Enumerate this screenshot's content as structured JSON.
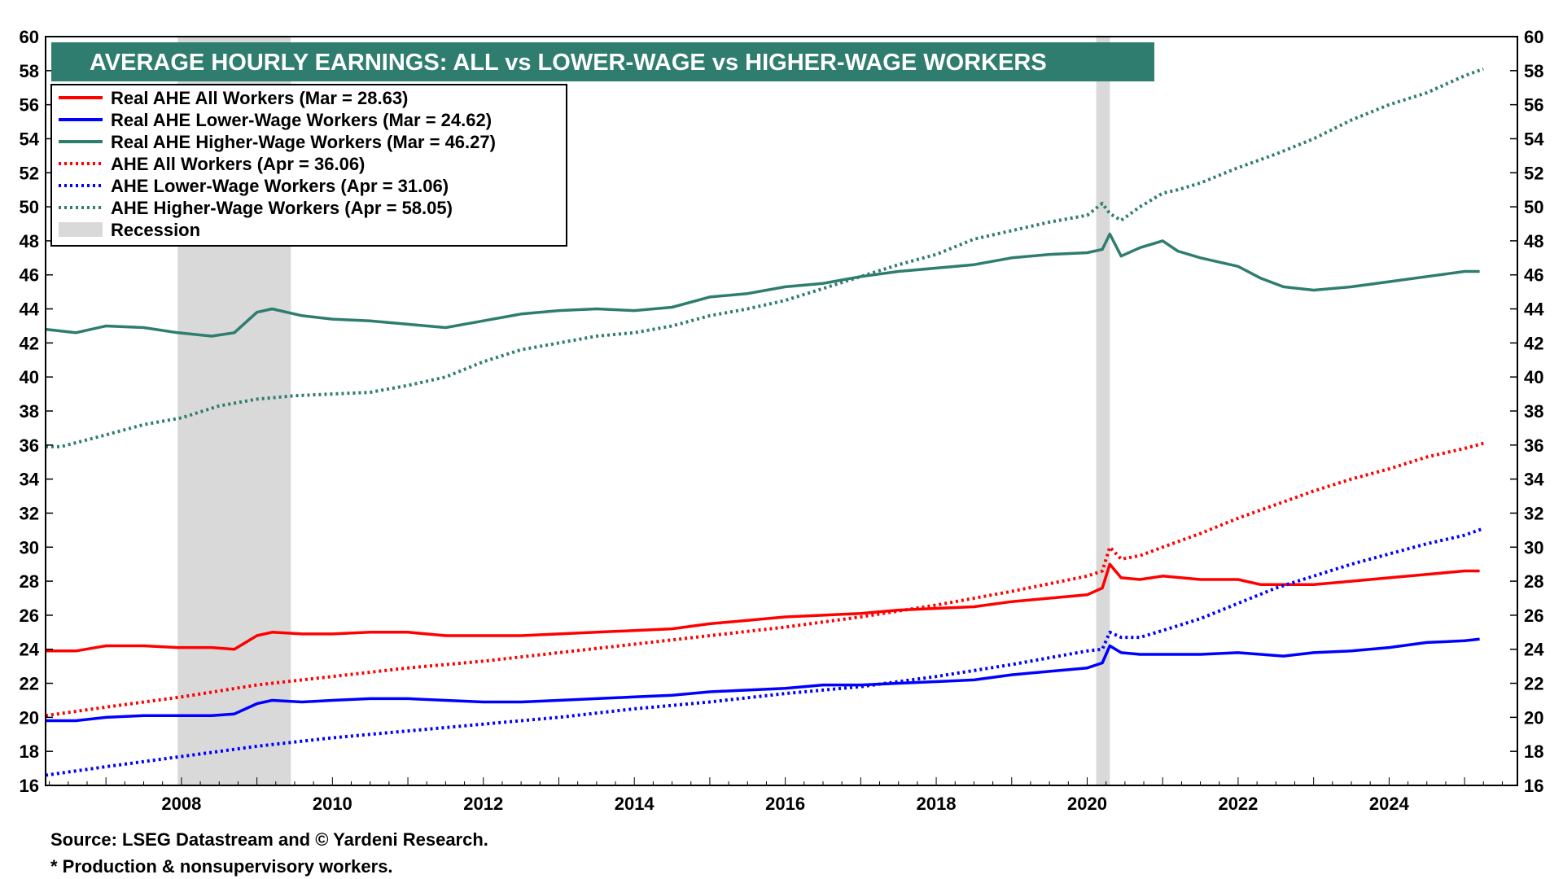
{
  "chart_data": {
    "type": "line",
    "title": "AVERAGE HOURLY EARNINGS: ALL vs LOWER-WAGE vs HIGHER-WAGE WORKERS",
    "xlabel": "",
    "ylabel": "",
    "xlim": [
      2006.2,
      2025.7
    ],
    "ylim": [
      16,
      60
    ],
    "yticks": [
      16,
      18,
      20,
      22,
      24,
      26,
      28,
      30,
      32,
      34,
      36,
      38,
      40,
      42,
      44,
      46,
      48,
      50,
      52,
      54,
      56,
      58,
      60
    ],
    "xticks": [
      2008,
      2010,
      2012,
      2014,
      2016,
      2018,
      2020,
      2022,
      2024
    ],
    "grid": false,
    "legend_position": "top-left",
    "recessions": [
      {
        "start": 2007.95,
        "end": 2009.45
      },
      {
        "start": 2020.12,
        "end": 2020.3
      }
    ],
    "series": [
      {
        "name": "Real AHE All Workers",
        "legend_label": "Real AHE All Workers  (Mar = 28.63)",
        "color": "#ff0000",
        "style": "solid",
        "x": [
          2006.2,
          2006.6,
          2007.0,
          2007.5,
          2007.95,
          2008.4,
          2008.7,
          2009.0,
          2009.2,
          2009.6,
          2010.0,
          2010.5,
          2011.0,
          2011.5,
          2012.0,
          2012.5,
          2013.0,
          2013.5,
          2014.0,
          2014.5,
          2015.0,
          2015.5,
          2016.0,
          2016.5,
          2017.0,
          2017.5,
          2018.0,
          2018.5,
          2019.0,
          2019.5,
          2020.0,
          2020.2,
          2020.3,
          2020.45,
          2020.7,
          2021.0,
          2021.5,
          2022.0,
          2022.3,
          2022.6,
          2023.0,
          2023.5,
          2024.0,
          2024.5,
          2025.0,
          2025.2
        ],
        "y": [
          23.9,
          23.9,
          24.2,
          24.2,
          24.1,
          24.1,
          24.0,
          24.8,
          25.0,
          24.9,
          24.9,
          25.0,
          25.0,
          24.8,
          24.8,
          24.8,
          24.9,
          25.0,
          25.1,
          25.2,
          25.5,
          25.7,
          25.9,
          26.0,
          26.1,
          26.3,
          26.4,
          26.5,
          26.8,
          27.0,
          27.2,
          27.6,
          29.0,
          28.2,
          28.1,
          28.3,
          28.1,
          28.1,
          27.8,
          27.8,
          27.8,
          28.0,
          28.2,
          28.4,
          28.6,
          28.6
        ]
      },
      {
        "name": "Real AHE Lower-Wage Workers",
        "legend_label": "Real AHE Lower-Wage Workers (Mar = 24.62)",
        "color": "#0000ff",
        "style": "solid",
        "x": [
          2006.2,
          2006.6,
          2007.0,
          2007.5,
          2007.95,
          2008.4,
          2008.7,
          2009.0,
          2009.2,
          2009.6,
          2010.0,
          2010.5,
          2011.0,
          2011.5,
          2012.0,
          2012.5,
          2013.0,
          2013.5,
          2014.0,
          2014.5,
          2015.0,
          2015.5,
          2016.0,
          2016.5,
          2017.0,
          2017.5,
          2018.0,
          2018.5,
          2019.0,
          2019.5,
          2020.0,
          2020.2,
          2020.3,
          2020.45,
          2020.7,
          2021.0,
          2021.5,
          2022.0,
          2022.3,
          2022.6,
          2023.0,
          2023.5,
          2024.0,
          2024.5,
          2025.0,
          2025.2
        ],
        "y": [
          19.8,
          19.8,
          20.0,
          20.1,
          20.1,
          20.1,
          20.2,
          20.8,
          21.0,
          20.9,
          21.0,
          21.1,
          21.1,
          21.0,
          20.9,
          20.9,
          21.0,
          21.1,
          21.2,
          21.3,
          21.5,
          21.6,
          21.7,
          21.9,
          21.9,
          22.0,
          22.1,
          22.2,
          22.5,
          22.7,
          22.9,
          23.2,
          24.2,
          23.8,
          23.7,
          23.7,
          23.7,
          23.8,
          23.7,
          23.6,
          23.8,
          23.9,
          24.1,
          24.4,
          24.5,
          24.6
        ]
      },
      {
        "name": "Real AHE Higher-Wage Workers",
        "legend_label": "Real AHE Higher-Wage Workers (Mar = 46.27)",
        "color": "#2e7d6e",
        "style": "solid",
        "x": [
          2006.2,
          2006.6,
          2007.0,
          2007.5,
          2007.95,
          2008.4,
          2008.7,
          2009.0,
          2009.2,
          2009.6,
          2010.0,
          2010.5,
          2011.0,
          2011.5,
          2012.0,
          2012.5,
          2013.0,
          2013.5,
          2014.0,
          2014.5,
          2015.0,
          2015.5,
          2016.0,
          2016.5,
          2017.0,
          2017.5,
          2018.0,
          2018.5,
          2019.0,
          2019.5,
          2020.0,
          2020.2,
          2020.3,
          2020.45,
          2020.7,
          2021.0,
          2021.2,
          2021.5,
          2022.0,
          2022.3,
          2022.6,
          2023.0,
          2023.5,
          2024.0,
          2024.5,
          2025.0,
          2025.2
        ],
        "y": [
          42.8,
          42.6,
          43.0,
          42.9,
          42.6,
          42.4,
          42.6,
          43.8,
          44.0,
          43.6,
          43.4,
          43.3,
          43.1,
          42.9,
          43.3,
          43.7,
          43.9,
          44.0,
          43.9,
          44.1,
          44.7,
          44.9,
          45.3,
          45.5,
          45.9,
          46.2,
          46.4,
          46.6,
          47.0,
          47.2,
          47.3,
          47.5,
          48.4,
          47.1,
          47.6,
          48.0,
          47.4,
          47.0,
          46.5,
          45.8,
          45.3,
          45.1,
          45.3,
          45.6,
          45.9,
          46.2,
          46.2
        ]
      },
      {
        "name": "AHE All Workers",
        "legend_label": "AHE All Workers  (Apr = 36.06)",
        "color": "#ff0000",
        "style": "dotted",
        "x": [
          2006.2,
          2007.0,
          2008.0,
          2009.0,
          2010.0,
          2011.0,
          2012.0,
          2013.0,
          2014.0,
          2015.0,
          2016.0,
          2017.0,
          2018.0,
          2019.0,
          2020.0,
          2020.2,
          2020.3,
          2020.45,
          2020.7,
          2021.0,
          2021.5,
          2022.0,
          2022.5,
          2023.0,
          2023.5,
          2024.0,
          2024.5,
          2025.0,
          2025.25
        ],
        "y": [
          20.1,
          20.6,
          21.2,
          21.9,
          22.4,
          22.9,
          23.3,
          23.8,
          24.3,
          24.8,
          25.3,
          25.9,
          26.6,
          27.4,
          28.3,
          28.6,
          30.0,
          29.3,
          29.5,
          30.0,
          30.8,
          31.7,
          32.5,
          33.3,
          34.0,
          34.6,
          35.3,
          35.8,
          36.1
        ]
      },
      {
        "name": "AHE Lower-Wage Workers",
        "legend_label": "AHE Lower-Wage Workers  (Apr = 31.06)",
        "color": "#0000ff",
        "style": "dotted",
        "x": [
          2006.2,
          2007.0,
          2008.0,
          2009.0,
          2010.0,
          2011.0,
          2012.0,
          2013.0,
          2014.0,
          2015.0,
          2016.0,
          2017.0,
          2018.0,
          2019.0,
          2020.0,
          2020.2,
          2020.3,
          2020.45,
          2020.7,
          2021.0,
          2021.5,
          2022.0,
          2022.5,
          2023.0,
          2023.5,
          2024.0,
          2024.5,
          2025.0,
          2025.25
        ],
        "y": [
          16.6,
          17.1,
          17.7,
          18.3,
          18.8,
          19.2,
          19.6,
          20.0,
          20.5,
          20.9,
          21.4,
          21.8,
          22.4,
          23.1,
          23.9,
          24.0,
          25.0,
          24.7,
          24.7,
          25.1,
          25.8,
          26.7,
          27.6,
          28.3,
          29.0,
          29.6,
          30.2,
          30.7,
          31.1
        ]
      },
      {
        "name": "AHE Higher-Wage Workers",
        "legend_label": "AHE Higher-Wage Workers  (Apr = 58.05)",
        "color": "#2e7d6e",
        "style": "dotted",
        "x": [
          2006.2,
          2006.4,
          2007.0,
          2007.5,
          2008.0,
          2008.5,
          2009.0,
          2009.5,
          2010.0,
          2010.5,
          2011.0,
          2011.5,
          2012.0,
          2012.5,
          2013.0,
          2013.5,
          2014.0,
          2014.5,
          2015.0,
          2015.5,
          2016.0,
          2016.5,
          2017.0,
          2017.5,
          2018.0,
          2018.5,
          2019.0,
          2019.5,
          2020.0,
          2020.2,
          2020.3,
          2020.45,
          2020.7,
          2021.0,
          2021.2,
          2021.5,
          2022.0,
          2022.5,
          2023.0,
          2023.5,
          2024.0,
          2024.5,
          2025.0,
          2025.25
        ],
        "y": [
          35.9,
          35.9,
          36.6,
          37.2,
          37.6,
          38.3,
          38.7,
          38.9,
          39.0,
          39.1,
          39.5,
          40.0,
          40.9,
          41.6,
          42.0,
          42.4,
          42.6,
          43.0,
          43.6,
          44.0,
          44.5,
          45.2,
          45.9,
          46.6,
          47.2,
          48.1,
          48.6,
          49.1,
          49.5,
          50.2,
          49.6,
          49.2,
          50.0,
          50.8,
          51.0,
          51.4,
          52.3,
          53.1,
          54.0,
          55.1,
          56.0,
          56.7,
          57.7,
          58.1
        ]
      }
    ],
    "legend": [
      {
        "label": "Real AHE All Workers  (Mar = 28.63)",
        "color": "#ff0000",
        "style": "solid"
      },
      {
        "label": "Real AHE Lower-Wage Workers (Mar = 24.62)",
        "color": "#0000ff",
        "style": "solid"
      },
      {
        "label": "Real AHE Higher-Wage Workers (Mar = 46.27)",
        "color": "#2e7d6e",
        "style": "solid"
      },
      {
        "label": "AHE All Workers  (Apr = 36.06)",
        "color": "#ff0000",
        "style": "dotted"
      },
      {
        "label": "AHE Lower-Wage Workers  (Apr = 31.06)",
        "color": "#0000ff",
        "style": "dotted"
      },
      {
        "label": "AHE Higher-Wage Workers  (Apr = 58.05)",
        "color": "#2e7d6e",
        "style": "dotted"
      },
      {
        "label": "Recession",
        "color": "#d9d9d9",
        "style": "box"
      }
    ]
  },
  "colors": {
    "title_bg": "#2e7d6e",
    "recession": "#d9d9d9"
  },
  "footnotes": {
    "source": "Source: LSEG Datastream and © Yardeni Research.",
    "note": "* Production & nonsupervisory workers."
  }
}
